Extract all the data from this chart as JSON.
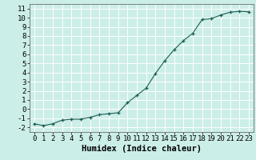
{
  "xlabel": "Humidex (Indice chaleur)",
  "x_values": [
    0,
    1,
    2,
    3,
    4,
    5,
    6,
    7,
    8,
    9,
    10,
    11,
    12,
    13,
    14,
    15,
    16,
    17,
    18,
    19,
    20,
    21,
    22,
    23
  ],
  "y_values": [
    -1.6,
    -1.8,
    -1.6,
    -1.2,
    -1.1,
    -1.1,
    -0.9,
    -0.6,
    -0.5,
    -0.4,
    0.7,
    1.5,
    2.3,
    3.9,
    5.3,
    6.5,
    7.5,
    8.3,
    9.8,
    9.9,
    10.3,
    10.6,
    10.7,
    10.65
  ],
  "xlim": [
    -0.5,
    23.5
  ],
  "ylim": [
    -2.5,
    11.5
  ],
  "yticks": [
    -2,
    -1,
    0,
    1,
    2,
    3,
    4,
    5,
    6,
    7,
    8,
    9,
    10,
    11
  ],
  "xticks": [
    0,
    1,
    2,
    3,
    4,
    5,
    6,
    7,
    8,
    9,
    10,
    11,
    12,
    13,
    14,
    15,
    16,
    17,
    18,
    19,
    20,
    21,
    22,
    23
  ],
  "line_color": "#1a5e52",
  "marker_color": "#1a5e52",
  "bg_color": "#cceee8",
  "grid_color": "#ffffff",
  "tick_label_fontsize": 6.5,
  "axis_label_fontsize": 7.5
}
